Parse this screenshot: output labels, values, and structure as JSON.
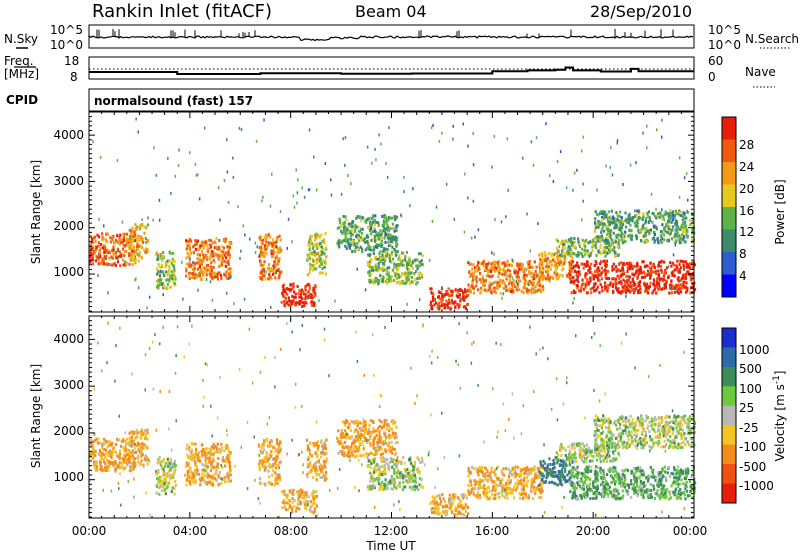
{
  "header": {
    "station": "Rankin Inlet (fitACF)",
    "beam": "Beam 04",
    "date": "28/Sep/2010"
  },
  "noise_panel": {
    "left_label": "N.Sky",
    "right_label": "N.Search",
    "left_ticks": [
      "10^5",
      "10^0"
    ],
    "right_ticks": [
      "10^5",
      "10^0"
    ]
  },
  "freq_panel": {
    "left_label_line1": "Freq.",
    "left_label_line2": "[MHz]",
    "right_label": "Nave",
    "left_ticks": [
      "18",
      "8"
    ],
    "right_ticks": [
      "60",
      "0"
    ],
    "freq_steps": [
      {
        "t": 0.0,
        "v": 11.2
      },
      {
        "t": 3.5,
        "v": 10.3
      },
      {
        "t": 6.8,
        "v": 10.6
      },
      {
        "t": 10.0,
        "v": 10.4
      },
      {
        "t": 12.8,
        "v": 10.5
      },
      {
        "t": 16.0,
        "v": 11.5
      },
      {
        "t": 17.4,
        "v": 11.9
      },
      {
        "t": 18.5,
        "v": 12.2
      },
      {
        "t": 18.9,
        "v": 13.2
      },
      {
        "t": 19.2,
        "v": 11.9
      },
      {
        "t": 20.3,
        "v": 11.4
      },
      {
        "t": 21.5,
        "v": 12.6
      },
      {
        "t": 21.8,
        "v": 11.5
      },
      {
        "t": 24.0,
        "v": 11.5
      }
    ]
  },
  "cpid": {
    "label": "CPID",
    "value": "normalsound (fast) 157"
  },
  "xaxis": {
    "label": "Time UT",
    "ticks": [
      "00:00",
      "04:00",
      "08:00",
      "12:00",
      "16:00",
      "20:00",
      "00:00"
    ]
  },
  "power_panel": {
    "ylabel": "Slant Range [km]",
    "yticks": [
      "1000",
      "2000",
      "3000",
      "4000"
    ],
    "colorbar_label": "Power [dB]",
    "colorbar_ticks": [
      "4",
      "8",
      "12",
      "16",
      "20",
      "24",
      "28"
    ],
    "colors": [
      "#0000ff",
      "#2e5bd0",
      "#3c8c6c",
      "#5fb247",
      "#e6c81e",
      "#f59a16",
      "#f05a0f",
      "#e61e0a"
    ]
  },
  "velocity_panel": {
    "ylabel": "Slant Range [km]",
    "yticks": [
      "1000",
      "2000",
      "3000",
      "4000"
    ],
    "colorbar_label": "Velocity [m s",
    "colorbar_label_sup": "-1",
    "colorbar_ticks": [
      "1000",
      "500",
      "100",
      "25",
      "-25",
      "-100",
      "-500",
      "-1000"
    ],
    "colors": [
      "#1a2ecf",
      "#2e6aa8",
      "#3c8c5c",
      "#6cc83c",
      "#b8b8b8",
      "#f5c323",
      "#f58c19",
      "#f05014",
      "#e61e0a"
    ]
  },
  "chart_data": {
    "type": "heatmap",
    "x_range_hours": [
      0,
      24
    ],
    "y_range_km": [
      180,
      4500
    ],
    "echo_bands": [
      {
        "t0": 0.0,
        "t1": 1.8,
        "r0": 1200,
        "r1": 1900,
        "pow": 24,
        "vel": -100
      },
      {
        "t0": 1.5,
        "t1": 2.3,
        "r0": 1300,
        "r1": 2100,
        "pow": 18,
        "vel": -100
      },
      {
        "t0": 2.6,
        "t1": 3.4,
        "r0": 700,
        "r1": 1500,
        "pow": 14,
        "vel": 25
      },
      {
        "t0": 3.8,
        "t1": 5.6,
        "r0": 900,
        "r1": 1800,
        "pow": 22,
        "vel": -100
      },
      {
        "t0": 6.7,
        "t1": 7.6,
        "r0": 900,
        "r1": 1900,
        "pow": 22,
        "vel": -100
      },
      {
        "t0": 7.6,
        "t1": 9.0,
        "r0": 300,
        "r1": 800,
        "pow": 28,
        "vel": -100
      },
      {
        "t0": 8.6,
        "t1": 9.4,
        "r0": 1000,
        "r1": 1900,
        "pow": 14,
        "vel": -100
      },
      {
        "t0": 9.8,
        "t1": 12.2,
        "r0": 1500,
        "r1": 2300,
        "pow": 10,
        "vel": -100
      },
      {
        "t0": 11.0,
        "t1": 13.2,
        "r0": 800,
        "r1": 1500,
        "pow": 12,
        "vel": 25
      },
      {
        "t0": 13.5,
        "t1": 15.0,
        "r0": 250,
        "r1": 700,
        "pow": 28,
        "vel": -100
      },
      {
        "t0": 15.0,
        "t1": 18.0,
        "r0": 600,
        "r1": 1300,
        "pow": 22,
        "vel": -100
      },
      {
        "t0": 17.8,
        "t1": 19.2,
        "r0": 900,
        "r1": 1500,
        "pow": 20,
        "vel": 500
      },
      {
        "t0": 19.0,
        "t1": 24.0,
        "r0": 600,
        "r1": 1300,
        "pow": 28,
        "vel": 100
      },
      {
        "t0": 18.5,
        "t1": 21.0,
        "r0": 1400,
        "r1": 1800,
        "pow": 12,
        "vel": 25
      },
      {
        "t0": 20.0,
        "t1": 24.0,
        "r0": 1700,
        "r1": 2400,
        "pow": 10,
        "vel": 25
      }
    ]
  }
}
